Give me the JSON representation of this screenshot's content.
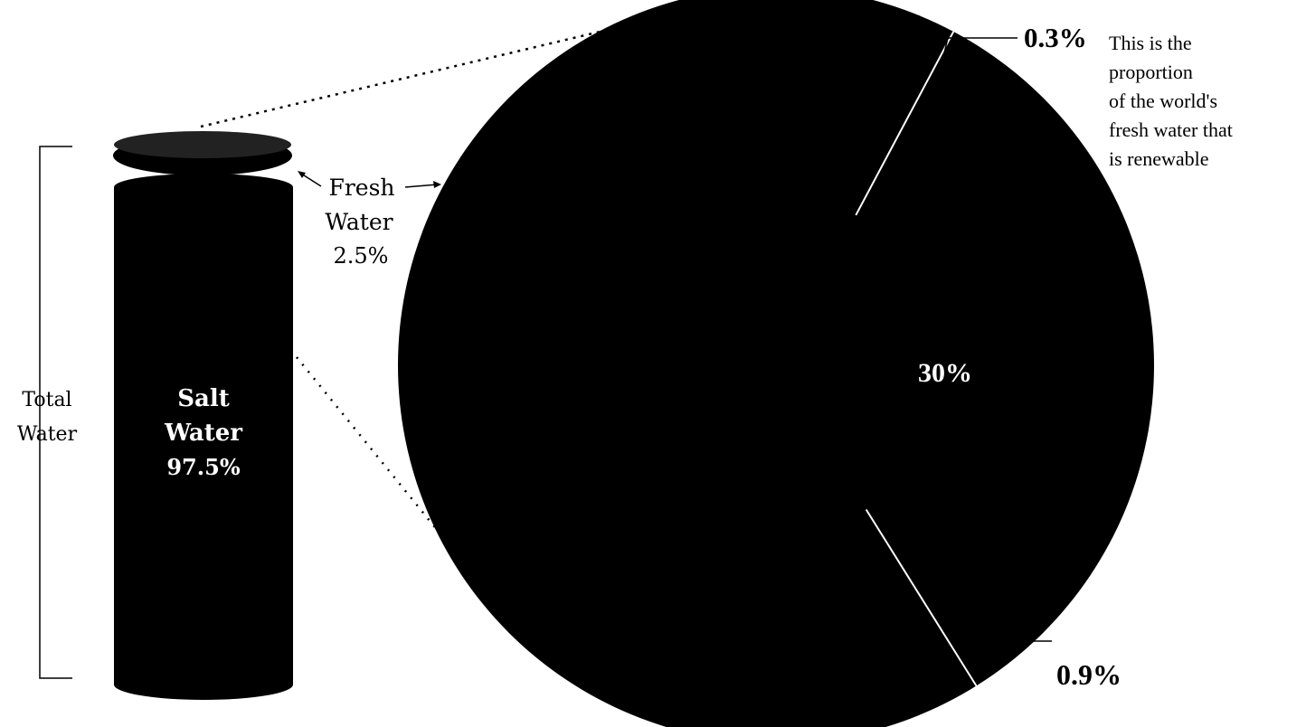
{
  "chart_data": [
    {
      "type": "bar",
      "title": "",
      "group_label": [
        "Total",
        "Water"
      ],
      "categories": [
        "Salt Water",
        "Fresh Water"
      ],
      "values": [
        97.5,
        2.5
      ],
      "labels": {
        "salt": {
          "name": [
            "Salt",
            "Water"
          ],
          "value": "97.5%"
        },
        "fresh": {
          "name": [
            "Fresh",
            "Water"
          ],
          "value": "2.5%"
        }
      }
    },
    {
      "type": "pie",
      "title": "",
      "slices": [
        {
          "label": "30%",
          "value": 30
        },
        {
          "label": "0.3%",
          "value": 0.3
        },
        {
          "label": "0.9%",
          "value": 0.9
        }
      ],
      "annotation": [
        "This is the",
        "proportion",
        "of the world's",
        "fresh water that",
        "is renewable"
      ]
    }
  ],
  "colors": {
    "fill": "#000000",
    "background": "#ffffff",
    "divider": "#ffffff"
  }
}
